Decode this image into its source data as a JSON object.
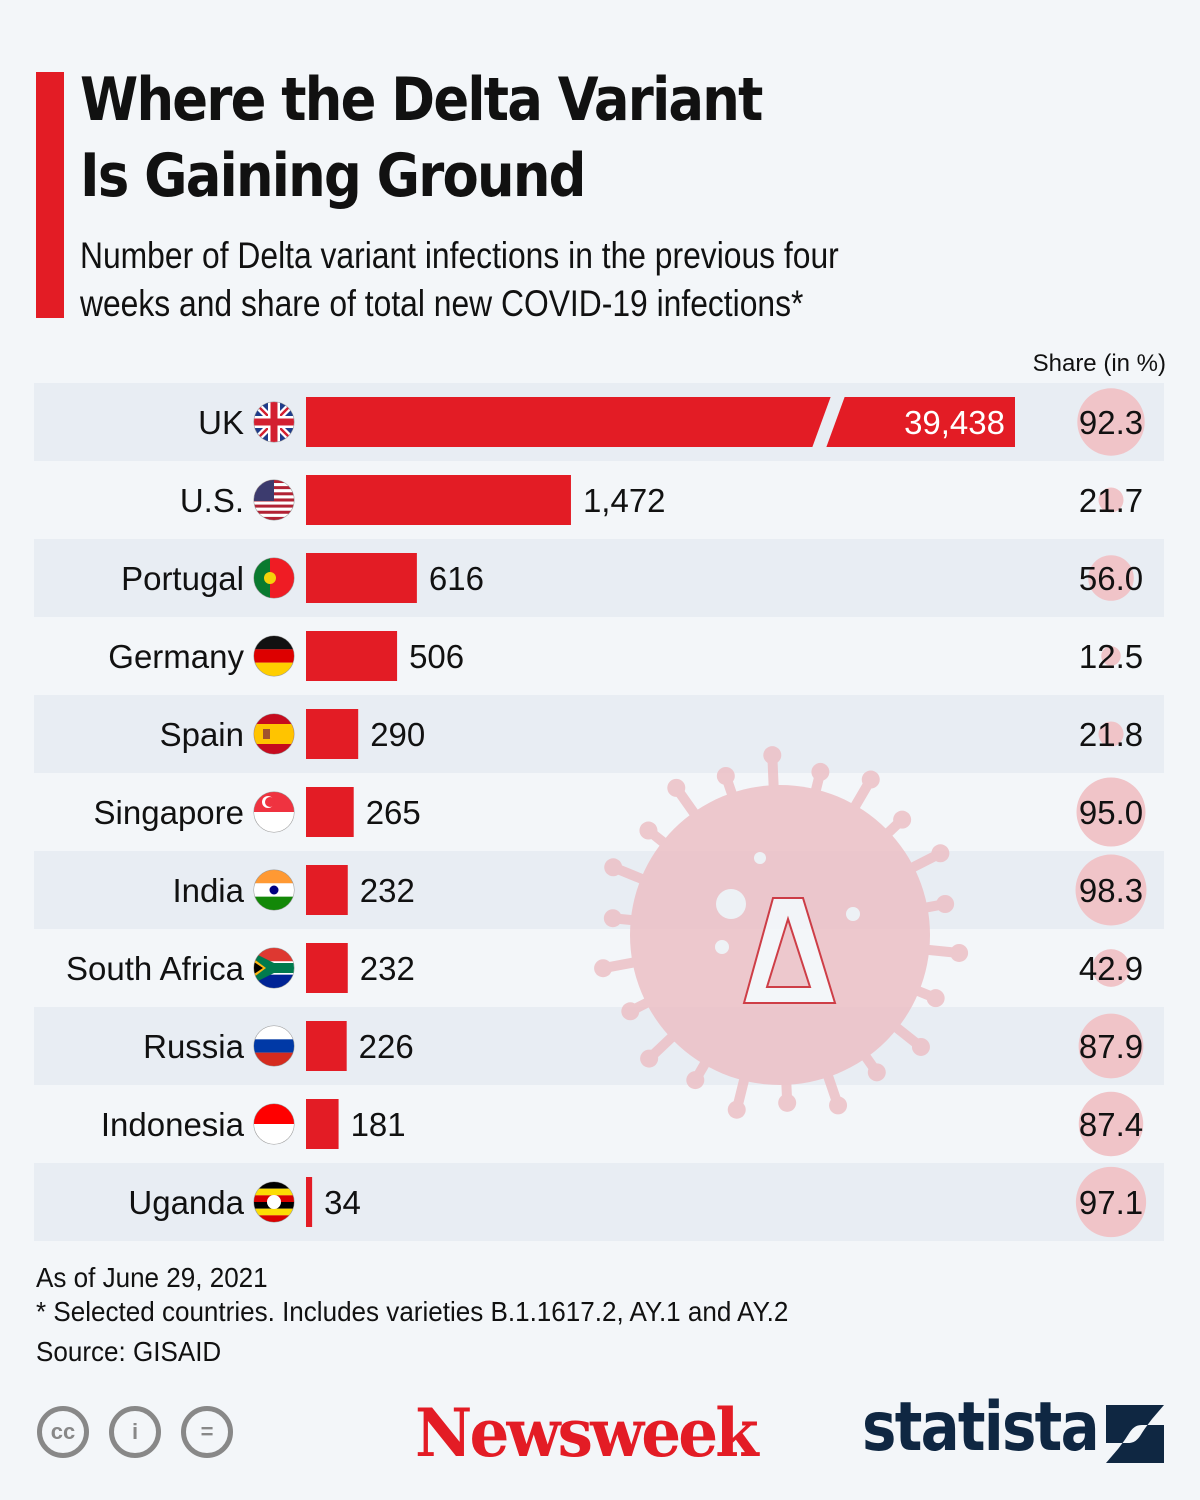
{
  "title_lines": [
    "Where the Delta Variant",
    "Is Gaining Ground"
  ],
  "subtitle_lines": [
    "Number of Delta variant infections in the previous four",
    "weeks and share of total new COVID-19 infections*"
  ],
  "colors": {
    "accent": "#e31c25",
    "bar": "#e31c25",
    "share_bubble": "#f0c4c8",
    "row_alt": "#e8edf3",
    "background": "#f3f6f9",
    "statista": "#0f2742"
  },
  "chart_data": {
    "type": "bar",
    "orientation": "horizontal",
    "title": "Where the Delta Variant Is Gaining Ground",
    "series_label": "Delta variant infections (previous four weeks)",
    "share_label": "Share (in %)",
    "categories": [
      "UK",
      "U.S.",
      "Portugal",
      "Germany",
      "Spain",
      "Singapore",
      "India",
      "South Africa",
      "Russia",
      "Indonesia",
      "Uganda"
    ],
    "values": [
      39438,
      1472,
      616,
      506,
      290,
      265,
      232,
      232,
      226,
      181,
      34
    ],
    "value_labels": [
      "39,438",
      "1,472",
      "616",
      "506",
      "290",
      "265",
      "232",
      "232",
      "226",
      "181",
      "34"
    ],
    "share": [
      92.3,
      21.7,
      56.0,
      12.5,
      21.8,
      95.0,
      98.3,
      42.9,
      87.9,
      87.4,
      97.1
    ],
    "share_labels": [
      "92.3",
      "21.7",
      "56.0",
      "12.5",
      "21.8",
      "95.0",
      "98.3",
      "42.9",
      "87.9",
      "87.4",
      "97.1"
    ],
    "axis_break": "UK bar truncated (broken axis)",
    "flags": [
      "uk-flag-icon",
      "us-flag-icon",
      "portugal-flag-icon",
      "germany-flag-icon",
      "spain-flag-icon",
      "singapore-flag-icon",
      "india-flag-icon",
      "south-africa-flag-icon",
      "russia-flag-icon",
      "indonesia-flag-icon",
      "uganda-flag-icon"
    ]
  },
  "illustration": {
    "icon": "virus-delta-icon",
    "glyph": "Δ"
  },
  "footer": {
    "date": "As of June 29, 2021",
    "note": "* Selected countries. Includes varieties B.1.1617.2, AY.1 and AY.2",
    "source": "Source: GISAID"
  },
  "license_icons": {
    "cc": "cc",
    "by": "i",
    "nd": "="
  },
  "brands": {
    "newsweek": "Newsweek",
    "statista": "statista"
  }
}
